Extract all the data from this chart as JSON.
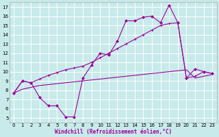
{
  "xlabel": "Windchill (Refroidissement éolien,°C)",
  "bg_color": "#c8eaea",
  "line_color": "#990099",
  "grid_color": "#ffffff",
  "xlim": [
    -0.5,
    23.5
  ],
  "ylim": [
    4.5,
    17.5
  ],
  "xticks": [
    0,
    1,
    2,
    3,
    4,
    5,
    6,
    7,
    8,
    9,
    10,
    11,
    12,
    13,
    14,
    15,
    16,
    17,
    18,
    19,
    20,
    21,
    22,
    23
  ],
  "yticks": [
    5,
    6,
    7,
    8,
    9,
    10,
    11,
    12,
    13,
    14,
    15,
    16,
    17
  ],
  "line1_x": [
    0,
    1,
    2,
    3,
    4,
    5,
    6,
    7,
    8,
    9,
    10,
    11,
    12,
    13,
    14,
    15,
    16,
    17,
    18,
    19,
    20,
    21,
    22,
    23
  ],
  "line1_y": [
    7.7,
    9.0,
    8.8,
    7.2,
    6.3,
    6.3,
    5.1,
    5.1,
    9.3,
    10.7,
    12.0,
    11.8,
    13.3,
    15.5,
    15.5,
    15.9,
    16.0,
    15.3,
    17.2,
    15.3,
    9.3,
    10.3,
    10.0,
    9.8
  ],
  "line2_x": [
    0,
    1,
    2,
    3,
    4,
    5,
    6,
    7,
    8,
    9,
    10,
    11,
    12,
    13,
    14,
    15,
    16,
    17,
    18,
    19,
    20,
    21,
    22,
    23
  ],
  "line2_y": [
    7.7,
    9.0,
    8.8,
    9.2,
    9.6,
    9.9,
    10.2,
    10.4,
    10.6,
    11.0,
    11.5,
    12.0,
    12.5,
    13.0,
    13.5,
    14.0,
    14.5,
    15.0,
    15.2,
    15.3,
    9.3,
    9.5,
    10.0,
    9.8
  ],
  "line3_x": [
    0,
    1,
    2,
    3,
    4,
    5,
    6,
    7,
    8,
    9,
    10,
    11,
    12,
    13,
    14,
    15,
    16,
    17,
    18,
    19,
    20,
    21,
    22,
    23
  ],
  "line3_y": [
    7.7,
    8.1,
    8.3,
    8.5,
    8.6,
    8.7,
    8.8,
    8.9,
    9.0,
    9.1,
    9.2,
    9.3,
    9.4,
    9.5,
    9.6,
    9.7,
    9.8,
    9.9,
    10.0,
    10.1,
    10.2,
    9.3,
    9.5,
    9.7
  ],
  "line1_marker_x": [
    0,
    1,
    2,
    3,
    4,
    5,
    6,
    7,
    8,
    9,
    10,
    11,
    12,
    13,
    14,
    15,
    16,
    17,
    18,
    19,
    20,
    21,
    22,
    23
  ],
  "line2_marker_x": [
    0,
    1,
    2,
    3,
    4,
    5,
    6,
    7,
    8,
    10,
    12,
    13,
    14,
    15,
    16,
    17,
    18,
    19,
    20,
    21,
    22,
    23
  ]
}
